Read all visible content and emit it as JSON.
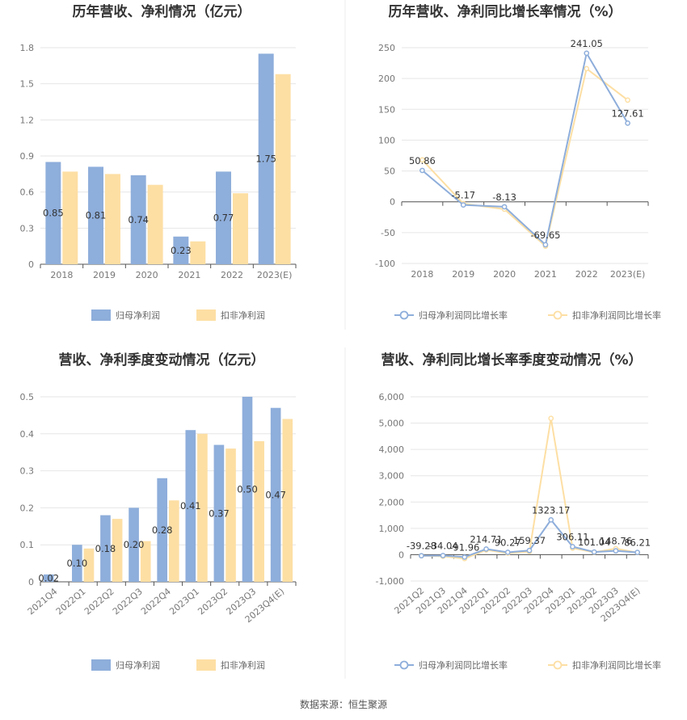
{
  "source": "数据来源：恒生聚源",
  "colors": {
    "primary": "#8eaedb",
    "secondary": "#fddfa4",
    "grid": "#e6e6e6",
    "axis": "#555555"
  },
  "chart_data": [
    {
      "type": "bar",
      "title": "历年营收、净利情况（亿元）",
      "categories": [
        "2018",
        "2019",
        "2020",
        "2021",
        "2022",
        "2023(E)"
      ],
      "series": [
        {
          "name": "归母净利润",
          "values": [
            0.85,
            0.81,
            0.74,
            0.23,
            0.77,
            1.75
          ]
        },
        {
          "name": "扣非净利润",
          "values": [
            0.77,
            0.75,
            0.66,
            0.19,
            0.59,
            1.58
          ]
        }
      ],
      "data_labels": [
        "0.85",
        "0.81",
        "0.74",
        "0.23",
        "0.77",
        "1.75"
      ],
      "yticks": [
        "0",
        "0.3",
        "0.6",
        "0.9",
        "1.2",
        "1.5",
        "1.8"
      ],
      "ylim": [
        0,
        1.8
      ],
      "legend": "bottom"
    },
    {
      "type": "line",
      "title": "历年营收、净利同比增长率情况（%）",
      "categories": [
        "2018",
        "2019",
        "2020",
        "2021",
        "2022",
        "2023(E)"
      ],
      "series": [
        {
          "name": "归母净利润同比增长率",
          "values": [
            50.86,
            -5.17,
            -8.13,
            -69.65,
            241.05,
            127.61
          ]
        },
        {
          "name": "扣非净利润同比增长率",
          "values": [
            68,
            -3,
            -12,
            -72,
            216,
            165
          ]
        }
      ],
      "data_labels": [
        "50.86",
        "-5.17",
        "-8.13",
        "-69.65",
        "241.05",
        "127.61"
      ],
      "yticks": [
        "-100",
        "-50",
        "0",
        "50",
        "100",
        "150",
        "200",
        "250"
      ],
      "ylim": [
        -100,
        250
      ],
      "legend": "bottom"
    },
    {
      "type": "bar",
      "title": "营收、净利季度变动情况（亿元）",
      "categories": [
        "2021Q4",
        "2022Q1",
        "2022Q2",
        "2022Q3",
        "2022Q4",
        "2023Q1",
        "2023Q2",
        "2023Q3",
        "2023Q4(E)"
      ],
      "series": [
        {
          "name": "归母净利润",
          "values": [
            0.02,
            0.1,
            0.18,
            0.2,
            0.28,
            0.41,
            0.37,
            0.5,
            0.47
          ]
        },
        {
          "name": "扣非净利润",
          "values": [
            0.0,
            0.09,
            0.17,
            0.11,
            0.22,
            0.4,
            0.36,
            0.38,
            0.44
          ]
        }
      ],
      "data_labels": [
        "0.02",
        "0.10",
        "0.18",
        "0.20",
        "0.28",
        "0.41",
        "0.37",
        "0.50",
        "0.47"
      ],
      "yticks": [
        "0",
        "0.1",
        "0.2",
        "0.3",
        "0.4",
        "0.5"
      ],
      "ylim": [
        0,
        0.5
      ],
      "legend": "bottom"
    },
    {
      "type": "line",
      "title": "营收、净利同比增长率季度变动情况（%）",
      "categories": [
        "2021Q2",
        "2021Q3",
        "2021Q4",
        "2022Q1",
        "2022Q2",
        "2022Q3",
        "2022Q4",
        "2023Q1",
        "2023Q2",
        "2023Q3",
        "2023Q4(E)"
      ],
      "series": [
        {
          "name": "归母净利润同比增长率",
          "values": [
            -39.28,
            -34.04,
            -91.96,
            214.71,
            90.27,
            159.37,
            1323.17,
            306.11,
            101.04,
            148.76,
            86.21
          ]
        },
        {
          "name": "扣非净利润同比增长率",
          "values": [
            -40,
            -60,
            -150,
            180,
            60,
            120,
            5180,
            250,
            90,
            230,
            80
          ]
        }
      ],
      "data_labels": [
        "-39.28",
        "-34.04",
        "-91.96",
        "214.71",
        "90.27",
        "159.37",
        "1323.17",
        "306.11",
        "101.04",
        "148.76",
        "86.21"
      ],
      "yticks": [
        "-1,000",
        "0",
        "1,000",
        "2,000",
        "3,000",
        "4,000",
        "5,000",
        "6,000"
      ],
      "ylim": [
        -1000,
        6000
      ],
      "legend": "bottom"
    }
  ]
}
